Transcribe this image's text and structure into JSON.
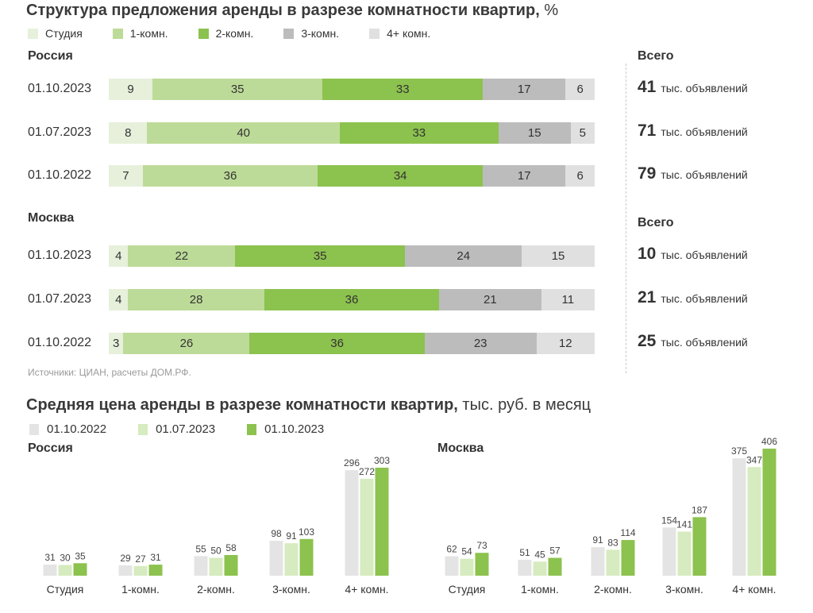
{
  "chart_data": [
    {
      "type": "bar",
      "orientation": "horizontal-stacked-100",
      "title": "Структура предложения аренды в разрезе комнатности квартир,",
      "title_unit": "%",
      "legend": [
        "Студия",
        "1-комн.",
        "2-комн.",
        "3-комн.",
        "4+ комн."
      ],
      "colors": [
        "#e6f0db",
        "#bddb98",
        "#8cc24e",
        "#bcbcbc",
        "#e0e0e0"
      ],
      "totals_header": "Всего",
      "totals_unit": "тыс. объявлений",
      "groups": [
        {
          "name": "Россия",
          "rows": [
            {
              "date": "01.10.2023",
              "values": [
                9,
                35,
                33,
                17,
                6
              ],
              "total": 41
            },
            {
              "date": "01.07.2023",
              "values": [
                8,
                40,
                33,
                15,
                5
              ],
              "total": 71
            },
            {
              "date": "01.10.2022",
              "values": [
                7,
                36,
                34,
                17,
                6
              ],
              "total": 79
            }
          ]
        },
        {
          "name": "Москва",
          "rows": [
            {
              "date": "01.10.2023",
              "values": [
                4,
                22,
                35,
                24,
                15
              ],
              "total": 10
            },
            {
              "date": "01.07.2023",
              "values": [
                4,
                28,
                36,
                21,
                11
              ],
              "total": 21
            },
            {
              "date": "01.10.2022",
              "values": [
                3,
                26,
                36,
                23,
                12
              ],
              "total": 25
            }
          ]
        }
      ],
      "source": "Источники: ЦИАН, расчеты ДОМ.РФ."
    },
    {
      "type": "bar",
      "orientation": "vertical-grouped",
      "title": "Средняя цена аренды в разрезе комнатности квартир,",
      "title_unit": "тыс. руб. в месяц",
      "categories": [
        "Студия",
        "1-комн.",
        "2-комн.",
        "3-комн.",
        "4+ комн."
      ],
      "series_names": [
        "01.10.2022",
        "01.07.2023",
        "01.10.2023"
      ],
      "colors": [
        "#e4e4e4",
        "#d6ebbf",
        "#8cc24e"
      ],
      "panels": [
        {
          "name": "Россия",
          "series": [
            {
              "name": "01.10.2022",
              "values": [
                31,
                29,
                55,
                98,
                296
              ]
            },
            {
              "name": "01.07.2023",
              "values": [
                30,
                27,
                50,
                91,
                272
              ]
            },
            {
              "name": "01.10.2023",
              "values": [
                35,
                31,
                58,
                103,
                303
              ]
            }
          ]
        },
        {
          "name": "Москва",
          "series": [
            {
              "name": "01.10.2022",
              "values": [
                62,
                51,
                91,
                154,
                375
              ]
            },
            {
              "name": "01.07.2023",
              "values": [
                54,
                45,
                83,
                141,
                347
              ]
            },
            {
              "name": "01.10.2023",
              "values": [
                73,
                57,
                114,
                187,
                406
              ]
            }
          ]
        }
      ]
    }
  ]
}
